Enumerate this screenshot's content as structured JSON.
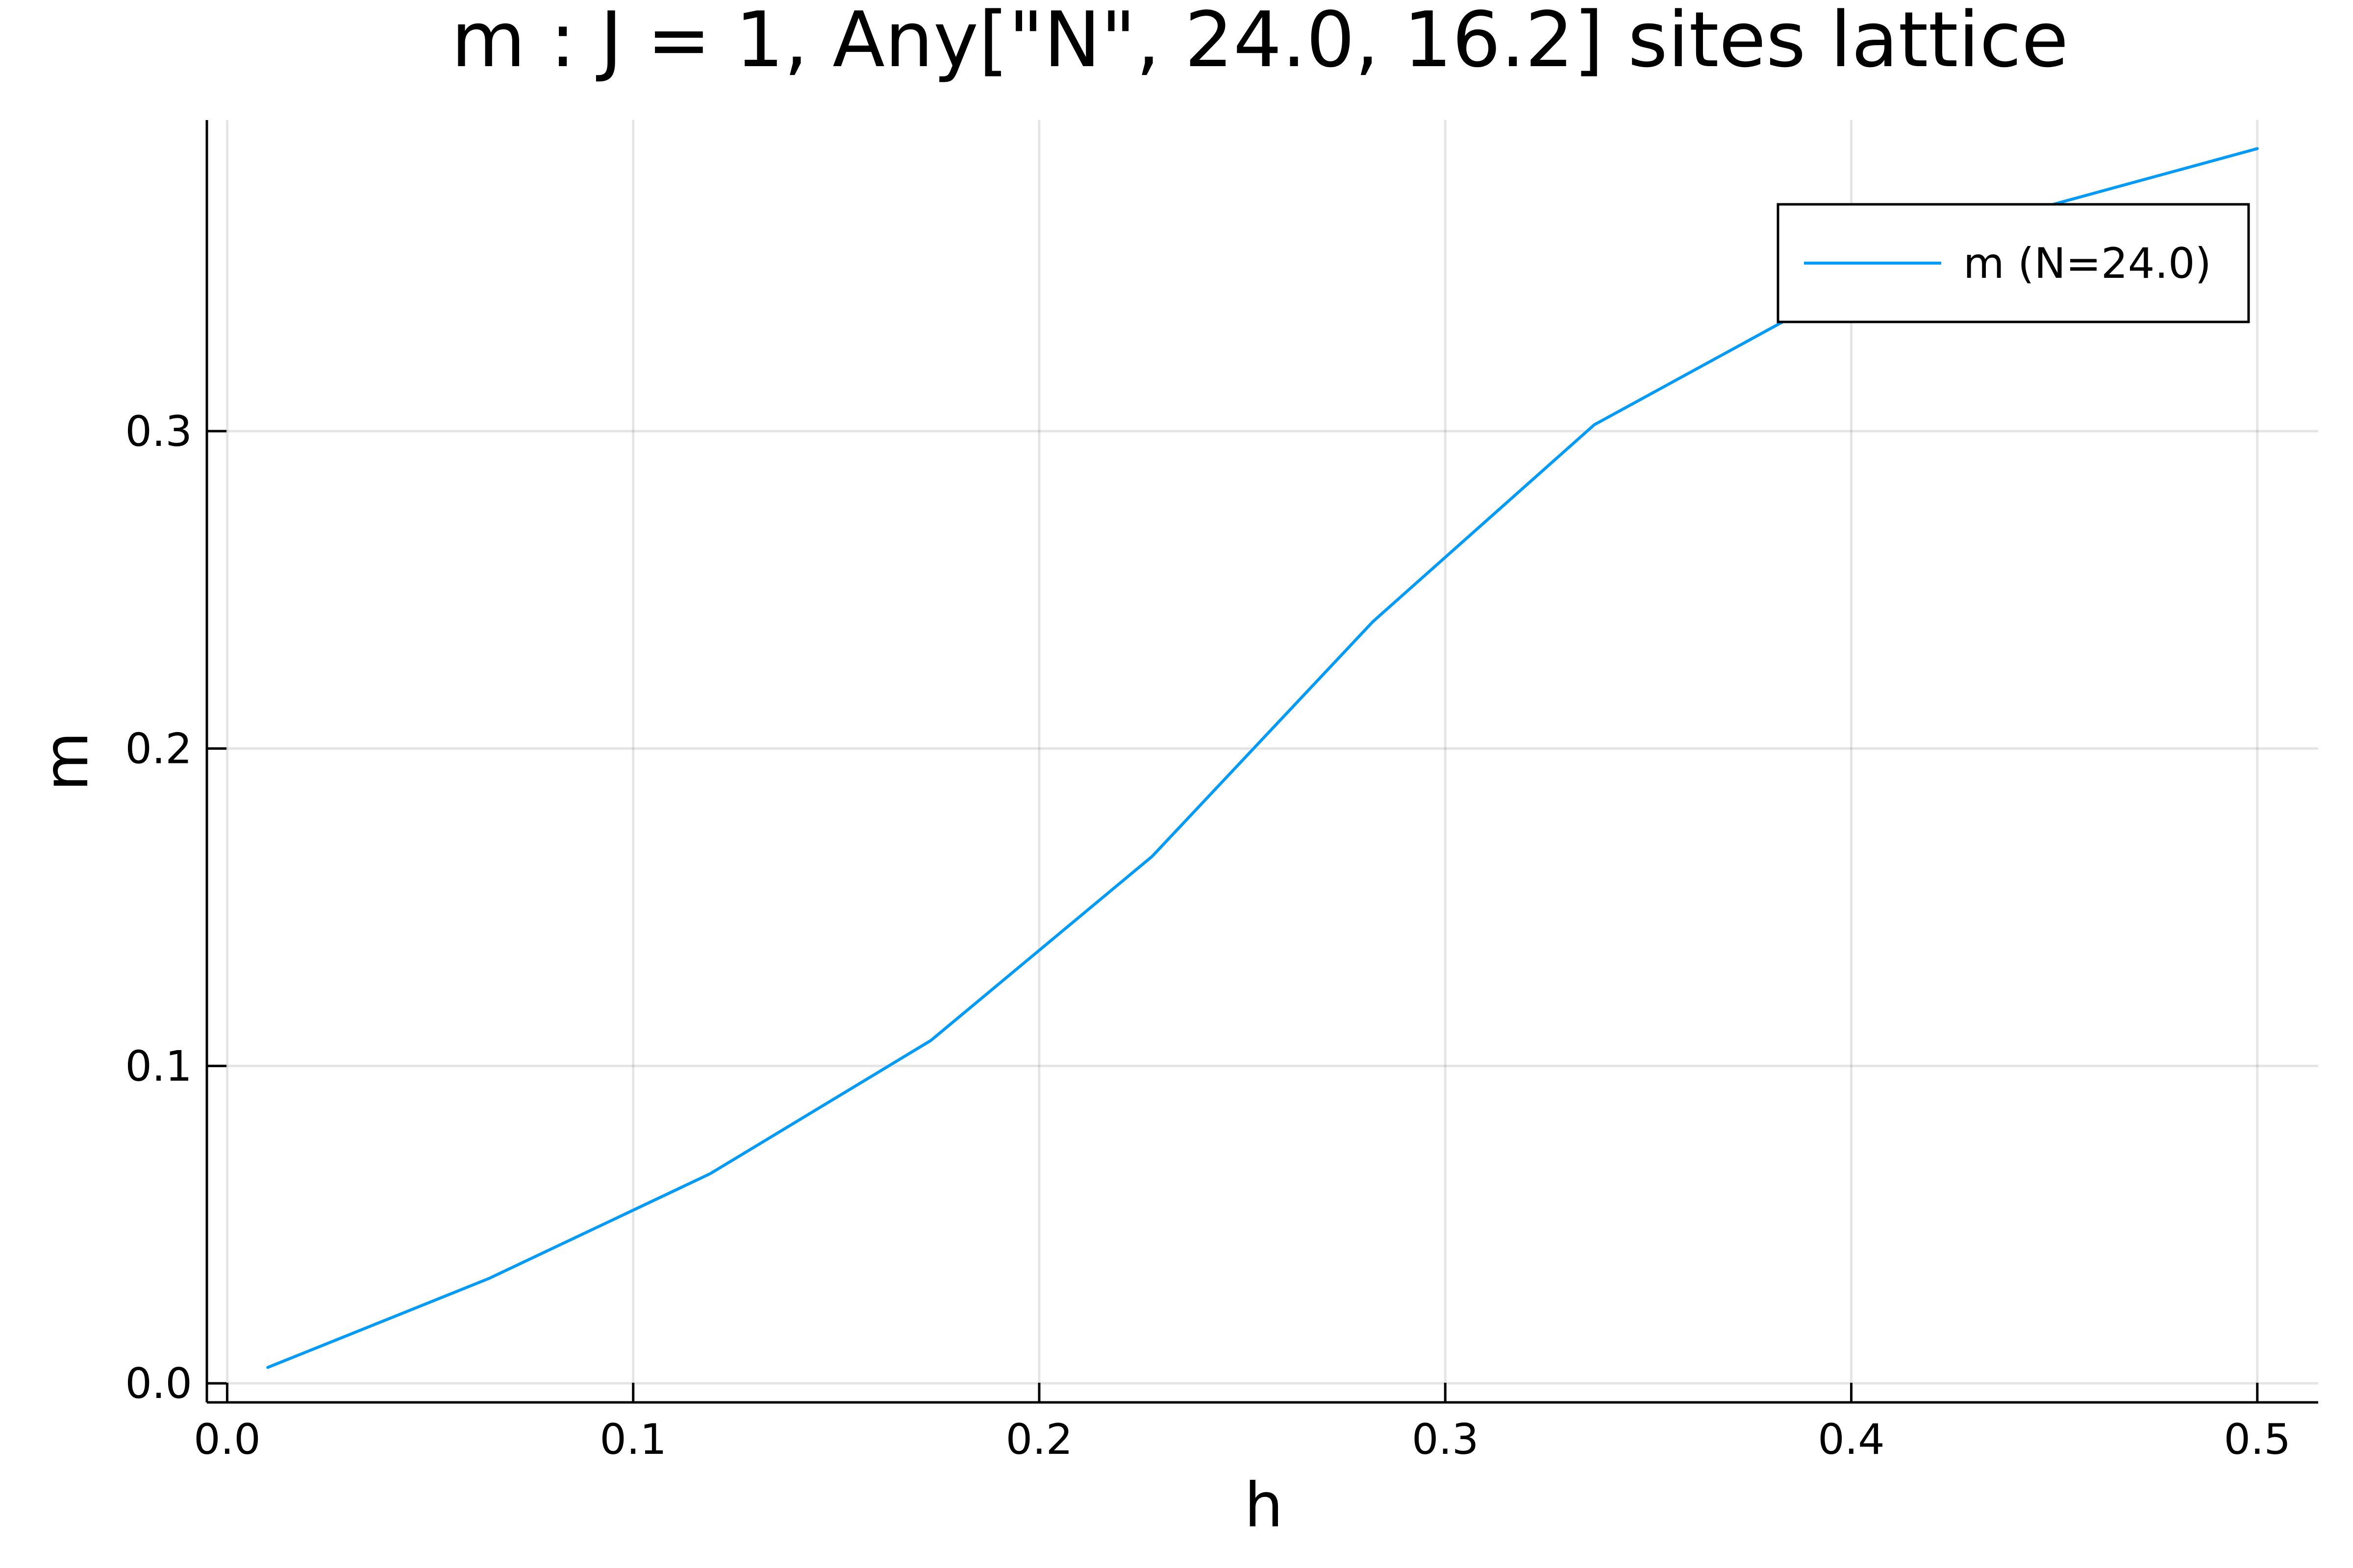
{
  "chart_data": {
    "type": "line",
    "title": "m : J = 1, Any[\"N\", 24.0, 16.2] sites lattice",
    "xlabel": "h",
    "ylabel": "m",
    "xlim": [
      -0.005,
      0.515
    ],
    "ylim": [
      -0.006,
      0.398
    ],
    "xticks": [
      0.0,
      0.1,
      0.2,
      0.3,
      0.4,
      0.5
    ],
    "xtick_labels": [
      "0.0",
      "0.1",
      "0.2",
      "0.3",
      "0.4",
      "0.5"
    ],
    "yticks": [
      0.0,
      0.1,
      0.2,
      0.3
    ],
    "ytick_labels": [
      "0.0",
      "0.1",
      "0.2",
      "0.3"
    ],
    "grid": true,
    "legend_position": "top-right",
    "series": [
      {
        "name": "m (N=24.0)",
        "color": "#009af9",
        "x": [
          0.01,
          0.0644,
          0.1189,
          0.1733,
          0.2278,
          0.2822,
          0.3367,
          0.3911,
          0.4456,
          0.5
        ],
        "y": [
          0.005,
          0.033,
          0.066,
          0.108,
          0.166,
          0.24,
          0.302,
          0.34,
          0.37,
          0.389
        ]
      }
    ]
  }
}
